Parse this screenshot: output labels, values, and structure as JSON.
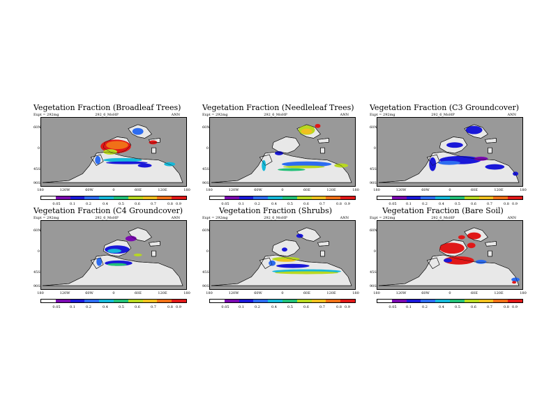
{
  "colors": {
    "ocean": "#999999",
    "land": "#e8e8e8",
    "scale": [
      "#ffffff",
      "#7a0ab0",
      "#1a18d8",
      "#2d6cf0",
      "#16b8d8",
      "#22c078",
      "#b8d820",
      "#f0c020",
      "#f07018",
      "#e01818"
    ]
  },
  "shared": {
    "subtitle_mid": "292_6_MoHP",
    "subtitle_right": "ANN",
    "lat_labels": [
      "60N",
      "0",
      "45S",
      "90S"
    ],
    "lon_labels": [
      "180",
      "120W",
      "60W",
      "0",
      "60E",
      "120E",
      "180"
    ],
    "colorbar_labels": [
      "0.05",
      "0.1",
      "0.2",
      "0.4",
      "0.5",
      "0.6",
      "0.7",
      "0.8",
      "0.9"
    ]
  },
  "panels": [
    {
      "title": "Vegetation Fraction (Broadleaf Trees)",
      "subtitle_left": "Expt = 292mg",
      "pattern": "broadleaf"
    },
    {
      "title": "Vegetation Fraction (Needleleaf Trees)",
      "subtitle_left": "Expt = 292mg",
      "pattern": "needleleaf"
    },
    {
      "title": "Vegetation Fraction (C3 Groundcover)",
      "subtitle_left": "Expt = 292mg",
      "pattern": "c3"
    },
    {
      "title": "Vegetation Fraction (C4 Groundcover)",
      "subtitle_left": "Expt = 292mg",
      "pattern": "c4"
    },
    {
      "title": "Vegetation Fraction (Shrubs)",
      "subtitle_left": "Expt = 292mg",
      "pattern": "shrubs"
    },
    {
      "title": "Vegetation Fraction (Bare Soil)",
      "subtitle_left": "Expt = 292mg",
      "pattern": "bare"
    }
  ]
}
